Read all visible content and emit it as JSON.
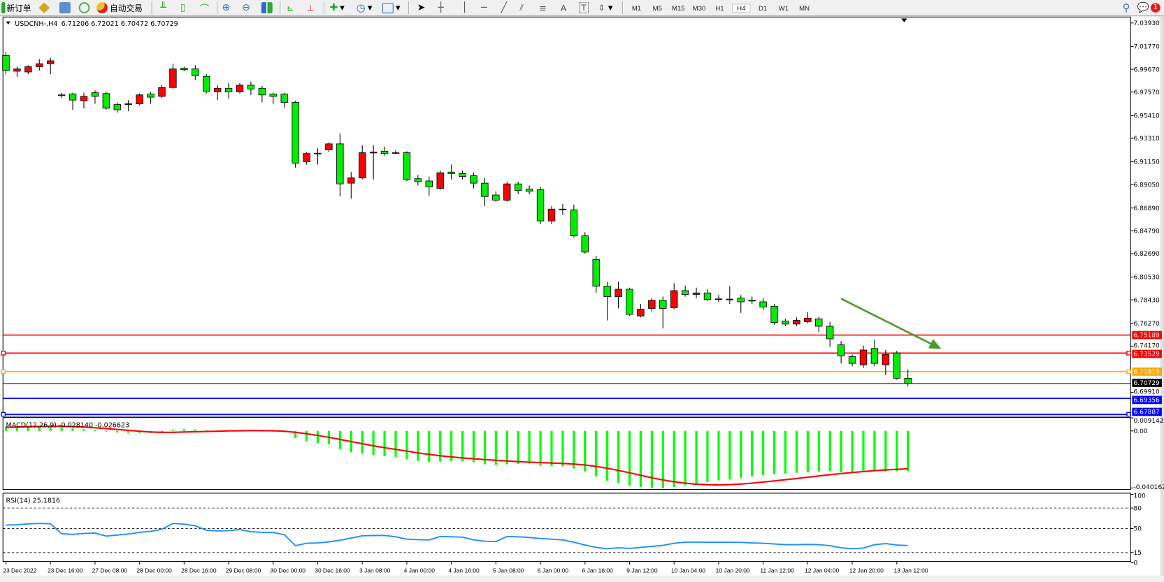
{
  "toolbar": {
    "new_order": "新订单",
    "auto_trading": "自动交易",
    "timeframes": [
      "M1",
      "M5",
      "M15",
      "M30",
      "H1",
      "H4",
      "D1",
      "W1",
      "MN"
    ],
    "active_timeframe": "H4",
    "notification_count": "1",
    "icons": [
      "new-order-icon",
      "market-watch-icon",
      "terminal-icon",
      "signals-icon",
      "auto-trading-icon",
      "bar-chart-icon",
      "candlestick-icon",
      "line-chart-icon",
      "zoom-in-icon",
      "zoom-out-icon",
      "tile-windows-icon",
      "chart-shift-icon",
      "auto-scroll-icon",
      "indicators-icon",
      "periods-icon",
      "templates-icon",
      "cursor-icon",
      "crosshair-icon",
      "vertical-line-icon",
      "horizontal-line-icon",
      "trendline-icon",
      "equidistant-channel-icon",
      "fibonacci-icon",
      "text-icon",
      "text-label-icon",
      "arrows-icon",
      "search-icon",
      "notification-icon"
    ]
  },
  "chart_header": {
    "symbol": "USDCNH-,H4",
    "ohlc": "6.71206 6.72021 6.70472 6.70729"
  },
  "macd_label": "MACD(12,26,9) -0.028140 -0.026623",
  "rsi_label": "RSI(14) 25.1816",
  "colors": {
    "bear": "#00ee00",
    "bull": "#ff0000",
    "macd_hist": "#00ff00",
    "macd_signal": "#ff0000",
    "rsi": "#1e90ff",
    "arrow": "#4a9a2a"
  },
  "chart_data": [
    {
      "type": "candlestick",
      "title": "USDCNH-,H4",
      "ylim": [
        6.6773,
        7.0455
      ],
      "y_ticks": [
        "7.03930",
        "7.01770",
        "6.99670",
        "6.97570",
        "6.95410",
        "6.93310",
        "6.91150",
        "6.89050",
        "6.86890",
        "6.84790",
        "6.82690",
        "6.80530",
        "6.78430",
        "6.76270",
        "6.74170",
        "6.69910"
      ],
      "x_tick_labels": [
        "23 Dec 2022",
        "23 Dec 16:00",
        "27 Dec 08:00",
        "28 Dec 00:00",
        "28 Dec 16:00",
        "29 Dec 08:00",
        "30 Dec 00:00",
        "30 Dec 16:00",
        "3 Jan 08:00",
        "4 Jan 00:00",
        "4 Jan 16:00",
        "5 Jan 08:00",
        "6 Jan 00:00",
        "6 Jan 16:00",
        "9 Jan 12:00",
        "10 Jan 04:00",
        "10 Jan 20:00",
        "11 Jan 12:00",
        "12 Jan 04:00",
        "12 Jan 20:00",
        "13 Jan 12:00"
      ],
      "ohlc": [
        [
          7.0093,
          7.0127,
          6.9922,
          6.9956
        ],
        [
          6.9949,
          6.999,
          6.9895,
          6.997
        ],
        [
          6.9942,
          7.0004,
          6.9922,
          6.999
        ],
        [
          6.999,
          7.0059,
          6.9956,
          7.0018
        ],
        [
          7.0018,
          7.0072,
          6.9922,
          7.0045
        ],
        [
          6.9731,
          6.9751,
          6.9703,
          6.9729
        ],
        [
          6.9738,
          6.9751,
          6.9594,
          6.9683
        ],
        [
          6.9676,
          6.9751,
          6.9608,
          6.9717
        ],
        [
          6.9751,
          6.9772,
          6.9649,
          6.9717
        ],
        [
          6.9744,
          6.9758,
          6.9594,
          6.9608
        ],
        [
          6.9642,
          6.9662,
          6.9567,
          6.9594
        ],
        [
          6.9649,
          6.9683,
          6.958,
          6.9647
        ],
        [
          6.9649,
          6.9744,
          6.9635,
          6.9731
        ],
        [
          6.9738,
          6.9758,
          6.9649,
          6.971
        ],
        [
          6.9717,
          6.982,
          6.9703,
          6.9799
        ],
        [
          6.9799,
          7.0018,
          6.9785,
          6.997
        ],
        [
          6.9977,
          6.999,
          6.9949,
          6.9963
        ],
        [
          6.997,
          7.0004,
          6.9867,
          6.9908
        ],
        [
          6.9902,
          6.9922,
          6.9744,
          6.9765
        ],
        [
          6.9758,
          6.982,
          6.9683,
          6.9792
        ],
        [
          6.9792,
          6.984,
          6.9697,
          6.9758
        ],
        [
          6.9758,
          6.984,
          6.9744,
          6.982
        ],
        [
          6.982,
          6.9854,
          6.9731,
          6.9785
        ],
        [
          6.9792,
          6.9813,
          6.9662,
          6.9731
        ],
        [
          6.9738,
          6.9751,
          6.9649,
          6.9717
        ],
        [
          6.9738,
          6.9751,
          6.9615,
          6.9662
        ],
        [
          6.9662,
          6.9676,
          6.9061,
          6.9102
        ],
        [
          6.9116,
          6.9205,
          6.9089,
          6.9191
        ],
        [
          6.9191,
          6.9239,
          6.9089,
          6.9194
        ],
        [
          6.9225,
          6.9294,
          6.9205,
          6.928
        ],
        [
          6.928,
          6.9376,
          6.8795,
          6.8911
        ],
        [
          6.8918,
          6.902,
          6.8775,
          6.8966
        ],
        [
          6.8966,
          6.9266,
          6.8952,
          6.9198
        ],
        [
          6.9198,
          6.9266,
          6.8952,
          6.9203
        ],
        [
          6.9212,
          6.9253,
          6.9171,
          6.9191
        ],
        [
          6.9198,
          6.9219,
          6.9184,
          6.9196
        ],
        [
          6.9198,
          6.9212,
          6.8938,
          6.8952
        ],
        [
          6.8959,
          6.8993,
          6.8897,
          6.8932
        ],
        [
          6.8938,
          6.8979,
          6.8802,
          6.8884
        ],
        [
          6.887,
          6.9034,
          6.8857,
          6.9014
        ],
        [
          6.902,
          6.9089,
          6.8952,
          6.9007
        ],
        [
          6.9007,
          6.9034,
          6.8952,
          6.8979
        ],
        [
          6.8986,
          6.9014,
          6.887,
          6.8918
        ],
        [
          6.8918,
          6.8966,
          6.8706,
          6.8795
        ],
        [
          6.8809,
          6.8843,
          6.8747,
          6.8761
        ],
        [
          6.8761,
          6.8932,
          6.8747,
          6.8911
        ],
        [
          6.8911,
          6.8932,
          6.8816,
          6.885
        ],
        [
          6.8863,
          6.8897,
          6.8816,
          6.8843
        ],
        [
          6.8857,
          6.8884,
          6.8542,
          6.857
        ],
        [
          6.857,
          6.8706,
          6.8542,
          6.8679
        ],
        [
          6.8679,
          6.8727,
          6.8624,
          6.8676
        ],
        [
          6.8672,
          6.872,
          6.8419,
          6.8433
        ],
        [
          6.8433,
          6.8467,
          6.8269,
          6.8283
        ],
        [
          6.8214,
          6.8249,
          6.7907,
          6.7969
        ],
        [
          6.7969,
          6.801,
          6.7654,
          6.7873
        ],
        [
          6.7873,
          6.801,
          6.7764,
          6.7941
        ],
        [
          6.7941,
          6.7955,
          6.7695,
          6.7709
        ],
        [
          6.7695,
          6.7805,
          6.7682,
          6.7757
        ],
        [
          6.7764,
          6.7859,
          6.7736,
          6.7839
        ],
        [
          6.7839,
          6.7873,
          6.7579,
          6.7764
        ],
        [
          6.7771,
          6.7996,
          6.7757,
          6.7928
        ],
        [
          6.7928,
          6.7975,
          6.7873,
          6.7893
        ],
        [
          6.7893,
          6.7955,
          6.7859,
          6.7907
        ],
        [
          6.7907,
          6.7941,
          6.7832,
          6.7846
        ],
        [
          6.7852,
          6.7887,
          6.7825,
          6.785
        ],
        [
          6.785,
          6.7969,
          6.7805,
          6.7846
        ],
        [
          6.7859,
          6.7887,
          6.7723,
          6.7825
        ],
        [
          6.7839,
          6.7873,
          6.7805,
          6.7837
        ],
        [
          6.7825,
          6.7859,
          6.775,
          6.7777
        ],
        [
          6.7784,
          6.7805,
          6.7614,
          6.7634
        ],
        [
          6.7648,
          6.7668,
          6.76,
          6.762
        ],
        [
          6.762,
          6.7682,
          6.76,
          6.7654
        ],
        [
          6.7641,
          6.773,
          6.7627,
          6.7675
        ],
        [
          6.7668,
          6.7689,
          6.7545,
          6.76
        ],
        [
          6.76,
          6.7641,
          6.7409,
          6.7484
        ],
        [
          6.7429,
          6.7463,
          6.7258,
          6.7327
        ],
        [
          6.732,
          6.734,
          6.7231,
          6.7258
        ],
        [
          6.7245,
          6.7422,
          6.7217,
          6.7381
        ],
        [
          6.7395,
          6.7477,
          6.7231,
          6.7258
        ],
        [
          6.7245,
          6.7381,
          6.7149,
          6.734
        ],
        [
          6.7354,
          6.7374,
          6.7108,
          6.7121
        ],
        [
          6.71206,
          6.72021,
          6.70472,
          6.70729
        ]
      ],
      "horizontal_lines": [
        {
          "price": "6.75189",
          "color": "#ff0000",
          "markers": false
        },
        {
          "price": "6.73529",
          "color": "#ff0000",
          "markers": true
        },
        {
          "price": "6.71819",
          "color": "#ffa500",
          "markers": true
        },
        {
          "price": "6.70729",
          "color": "#000000",
          "markers": false
        },
        {
          "price": "6.69356",
          "color": "#0000ff",
          "markers": false
        },
        {
          "price": "6.67887",
          "color": "#0000ff",
          "markers": true
        }
      ],
      "arrow": {
        "from": {
          "bar": 75,
          "price": 6.7854
        },
        "to": {
          "bar": 84,
          "price": 6.7391
        },
        "color": "#4a9a2a"
      }
    },
    {
      "type": "bar+line",
      "title": "MACD(12,26,9)",
      "ylim": [
        -0.040162,
        0.009142
      ],
      "y_ticks": [
        "0.009142",
        "0.00",
        "-0.040162"
      ],
      "histogram": [
        0.003,
        0.0032,
        0.0033,
        0.0034,
        0.0035,
        0.0025,
        0.0018,
        0.0012,
        0.0008,
        -0.0005,
        -0.0012,
        -0.0015,
        -0.0014,
        -0.0015,
        -0.001,
        0.0008,
        0.0012,
        0.001,
        0.0004,
        0.0002,
        0.0001,
        0.0003,
        0.0002,
        0.0,
        -0.0004,
        -0.001,
        -0.005,
        -0.007,
        -0.0085,
        -0.0095,
        -0.013,
        -0.015,
        -0.016,
        -0.017,
        -0.0178,
        -0.0185,
        -0.02,
        -0.021,
        -0.022,
        -0.0215,
        -0.0212,
        -0.0215,
        -0.022,
        -0.0235,
        -0.024,
        -0.0235,
        -0.0232,
        -0.023,
        -0.0245,
        -0.0248,
        -0.025,
        -0.0265,
        -0.0285,
        -0.032,
        -0.035,
        -0.0365,
        -0.0385,
        -0.0395,
        -0.04,
        -0.0402,
        -0.0395,
        -0.038,
        -0.037,
        -0.036,
        -0.0348,
        -0.034,
        -0.033,
        -0.032,
        -0.031,
        -0.0305,
        -0.03,
        -0.0295,
        -0.029,
        -0.0285,
        -0.0283,
        -0.029,
        -0.0288,
        -0.028,
        -0.0282,
        -0.0284,
        -0.0283,
        -0.02814
      ],
      "signal": [
        0.0025,
        0.0027,
        0.0029,
        0.0031,
        0.0032,
        0.0032,
        0.003,
        0.0027,
        0.0022,
        0.0016,
        0.001,
        0.0004,
        -0.0002,
        -0.0008,
        -0.001,
        -0.001,
        -0.0008,
        -0.0006,
        -0.0004,
        -0.0002,
        0.0,
        0.0001,
        0.0002,
        0.0002,
        0.0001,
        -0.0002,
        -0.001,
        -0.002,
        -0.0032,
        -0.0045,
        -0.006,
        -0.0075,
        -0.009,
        -0.0105,
        -0.0118,
        -0.013,
        -0.0142,
        -0.0155,
        -0.0165,
        -0.0175,
        -0.0183,
        -0.019,
        -0.0196,
        -0.0202,
        -0.0207,
        -0.0212,
        -0.0216,
        -0.022,
        -0.0223,
        -0.0226,
        -0.0229,
        -0.0233,
        -0.024,
        -0.025,
        -0.0263,
        -0.0278,
        -0.0295,
        -0.0312,
        -0.033,
        -0.0345,
        -0.0358,
        -0.0368,
        -0.0375,
        -0.0378,
        -0.038,
        -0.0378,
        -0.0374,
        -0.0368,
        -0.036,
        -0.0352,
        -0.0343,
        -0.0335,
        -0.0326,
        -0.0317,
        -0.0308,
        -0.03,
        -0.0293,
        -0.0286,
        -0.028,
        -0.0275,
        -0.027,
        -0.026623
      ]
    },
    {
      "type": "line",
      "title": "RSI(14)",
      "ylim": [
        0,
        100
      ],
      "y_ticks": [
        "100",
        "80",
        "50",
        "15",
        "0"
      ],
      "levels": [
        80,
        50,
        15
      ],
      "values": [
        55.1,
        55.5,
        56.8,
        57.5,
        57.0,
        42.5,
        41.5,
        42.8,
        43.5,
        39.0,
        40.5,
        42.0,
        44.5,
        46.0,
        49.0,
        57.5,
        56.5,
        54.0,
        47.5,
        46.5,
        47.0,
        48.5,
        45.5,
        44.5,
        44.2,
        41.0,
        25.0,
        28.5,
        29.0,
        30.5,
        33.0,
        36.0,
        39.5,
        39.8,
        40.0,
        38.0,
        34.5,
        33.8,
        33.4,
        38.5,
        38.0,
        37.5,
        33.5,
        31.5,
        31.0,
        38.5,
        38.0,
        37.0,
        35.5,
        34.5,
        33.4,
        30.0,
        26.0,
        22.5,
        20.5,
        22.0,
        21.0,
        22.5,
        24.0,
        25.5,
        28.5,
        30.2,
        30.2,
        30.0,
        30.0,
        30.0,
        29.8,
        29.0,
        28.5,
        27.5,
        26.5,
        26.5,
        26.8,
        26.5,
        25.0,
        22.0,
        20.5,
        21.5,
        26.5,
        28.0,
        26.0,
        25.1816
      ]
    }
  ]
}
